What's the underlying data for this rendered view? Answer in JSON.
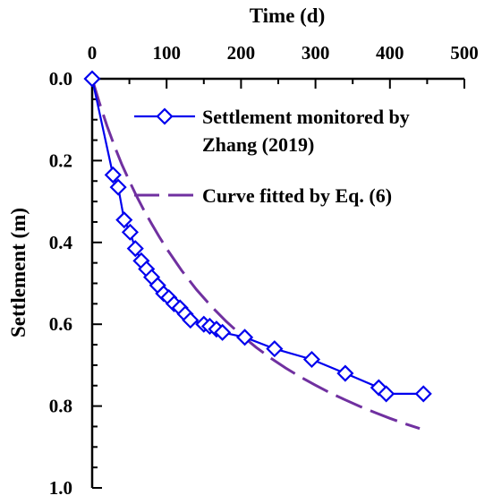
{
  "chart_data": {
    "type": "line",
    "title": "",
    "xlabel": "Time (d)",
    "ylabel": "Settlement (m)",
    "xlim": [
      0,
      500
    ],
    "ylim": [
      0.0,
      1.0
    ],
    "y_inverted": true,
    "x_axis_position": "top",
    "xticks": [
      "0",
      "100",
      "200",
      "300",
      "400",
      "500"
    ],
    "yticks": [
      "0.0",
      "0.2",
      "0.4",
      "0.6",
      "0.8",
      "1.0"
    ],
    "grid": false,
    "legend_position": "top-right",
    "series": [
      {
        "name": "Settlement monitored by Zhang (2019)",
        "name_lines": [
          "Settlement monitored by",
          "Zhang (2019)"
        ],
        "style": "line-diamond",
        "color": "#0000ee",
        "x": [
          0,
          28,
          35,
          43,
          51,
          58,
          66,
          73,
          80,
          88,
          96,
          103,
          110,
          118,
          125,
          132,
          150,
          158,
          167,
          175,
          205,
          245,
          295,
          340,
          385,
          395,
          445
        ],
        "y": [
          0.0,
          0.235,
          0.265,
          0.345,
          0.375,
          0.415,
          0.445,
          0.465,
          0.485,
          0.505,
          0.525,
          0.535,
          0.55,
          0.56,
          0.575,
          0.59,
          0.6,
          0.605,
          0.612,
          0.62,
          0.632,
          0.66,
          0.686,
          0.72,
          0.755,
          0.77,
          0.77
        ]
      },
      {
        "name": "Curve fitted by Eq. (6)",
        "style": "dashed",
        "color": "#7030a0",
        "x": [
          0,
          10,
          20,
          30,
          40,
          50,
          60,
          70,
          80,
          90,
          100,
          120,
          140,
          160,
          180,
          200,
          220,
          240,
          260,
          280,
          300,
          320,
          340,
          360,
          380,
          400,
          420,
          440
        ],
        "y": [
          0.0,
          0.06,
          0.115,
          0.165,
          0.21,
          0.25,
          0.288,
          0.323,
          0.355,
          0.386,
          0.415,
          0.468,
          0.515,
          0.556,
          0.593,
          0.626,
          0.656,
          0.683,
          0.707,
          0.729,
          0.749,
          0.768,
          0.785,
          0.801,
          0.816,
          0.83,
          0.843,
          0.855
        ]
      }
    ]
  }
}
